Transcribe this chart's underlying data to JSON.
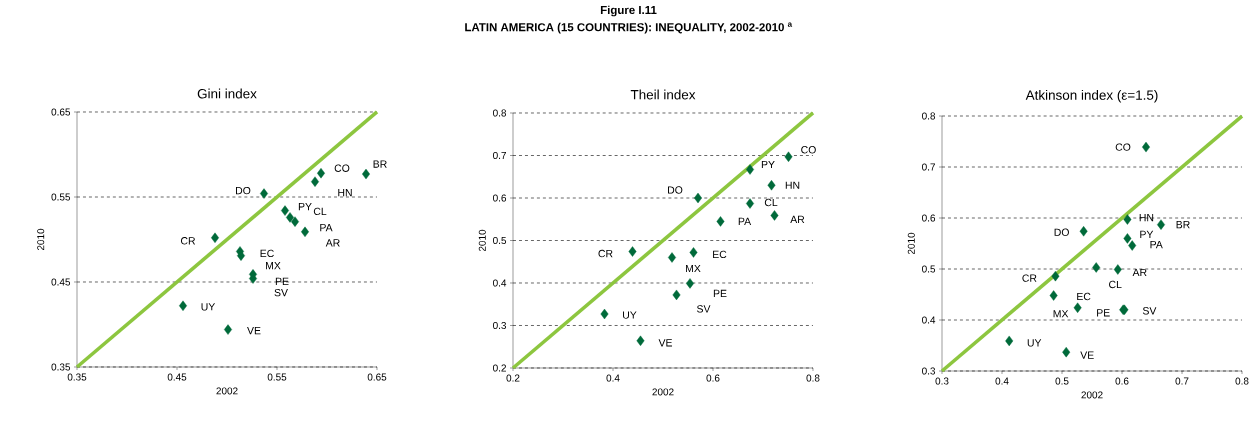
{
  "chart_data": [
    {
      "type": "scatter",
      "title": "Gini index",
      "xlabel": "2002",
      "ylabel": "2010",
      "xlim": [
        0.35,
        0.65
      ],
      "ylim": [
        0.35,
        0.65
      ],
      "xticks": [
        0.35,
        0.45,
        0.55,
        0.65
      ],
      "yticks": [
        0.35,
        0.45,
        0.55,
        0.65
      ],
      "grid": "y",
      "series": [
        {
          "marker": "diamond",
          "color": "#006a3a",
          "x": [
            0.639,
            0.594,
            0.588,
            0.537,
            0.558,
            0.563,
            0.568,
            0.578,
            0.488,
            0.513,
            0.514,
            0.526,
            0.526,
            0.456,
            0.501
          ],
          "values": [
            0.577,
            0.578,
            0.568,
            0.554,
            0.534,
            0.526,
            0.521,
            0.509,
            0.502,
            0.486,
            0.481,
            0.459,
            0.454,
            0.422,
            0.394
          ]
        },
        {
          "type": "line",
          "marker": "none",
          "color": "#8dc63f",
          "x": [
            0.35,
            0.65
          ],
          "values": [
            0.35,
            0.65
          ]
        }
      ],
      "annotations": [
        "Figure I.11",
        "LATIN AMERICA (15 COUNTRIES): INEQUALITY, 2002-2010 $^{a}$",
        {
          "text": "BR",
          "x": 0.639,
          "y": 0.577
        },
        {
          "text": "CO",
          "x": 0.594,
          "y": 0.578
        },
        {
          "text": "HN",
          "x": 0.588,
          "y": 0.568
        },
        {
          "text": "DO",
          "x": 0.537,
          "y": 0.554
        },
        {
          "text": "PY",
          "x": 0.558,
          "y": 0.534
        },
        {
          "text": "CL",
          "x": 0.563,
          "y": 0.526
        },
        {
          "text": "PA",
          "x": 0.568,
          "y": 0.521
        },
        {
          "text": "AR",
          "x": 0.578,
          "y": 0.509
        },
        {
          "text": "CR",
          "x": 0.488,
          "y": 0.502
        },
        {
          "text": "EC",
          "x": 0.513,
          "y": 0.486
        },
        {
          "text": "MX",
          "x": 0.514,
          "y": 0.481
        },
        {
          "text": "PE",
          "x": 0.526,
          "y": 0.459
        },
        {
          "text": "SV",
          "x": 0.526,
          "y": 0.454
        },
        {
          "text": "UY",
          "x": 0.456,
          "y": 0.422
        },
        {
          "text": "VE",
          "x": 0.501,
          "y": 0.394
        }
      ]
    },
    {
      "type": "scatter",
      "title": "Theil index",
      "xlabel": "2002",
      "ylabel": "2010",
      "xlim": [
        0.2,
        0.8
      ],
      "ylim": [
        0.2,
        0.8
      ],
      "xticks": [
        0.2,
        0.4,
        0.6,
        0.8
      ],
      "yticks": [
        0.2,
        0.3,
        0.4,
        0.5,
        0.6,
        0.7,
        0.8
      ],
      "grid": "y",
      "series": [
        {
          "marker": "diamond",
          "color": "#006a3a",
          "x": [
            0.751,
            0.674,
            0.717,
            0.57,
            0.674,
            0.723,
            0.615,
            0.439,
            0.561,
            0.518,
            0.554,
            0.527,
            0.383,
            0.455
          ],
          "values": [
            0.697,
            0.667,
            0.63,
            0.6,
            0.587,
            0.559,
            0.545,
            0.474,
            0.472,
            0.46,
            0.399,
            0.372,
            0.327,
            0.264
          ]
        },
        {
          "type": "line",
          "marker": "none",
          "color": "#8dc63f",
          "x": [
            0.2,
            0.8
          ],
          "values": [
            0.2,
            0.8
          ]
        }
      ],
      "annotations": [
        {
          "text": "CO",
          "x": 0.751,
          "y": 0.697
        },
        {
          "text": "PY",
          "x": 0.674,
          "y": 0.667
        },
        {
          "text": "HN",
          "x": 0.717,
          "y": 0.63
        },
        {
          "text": "DO",
          "x": 0.57,
          "y": 0.6
        },
        {
          "text": "CL",
          "x": 0.674,
          "y": 0.587
        },
        {
          "text": "AR",
          "x": 0.723,
          "y": 0.559
        },
        {
          "text": "PA",
          "x": 0.615,
          "y": 0.545
        },
        {
          "text": "CR",
          "x": 0.439,
          "y": 0.474
        },
        {
          "text": "EC",
          "x": 0.561,
          "y": 0.472
        },
        {
          "text": "MX",
          "x": 0.518,
          "y": 0.46
        },
        {
          "text": "PE",
          "x": 0.554,
          "y": 0.399
        },
        {
          "text": "SV",
          "x": 0.527,
          "y": 0.372
        },
        {
          "text": "UY",
          "x": 0.383,
          "y": 0.327
        },
        {
          "text": "VE",
          "x": 0.455,
          "y": 0.264
        }
      ]
    },
    {
      "type": "scatter",
      "title": "Atkinson index (ε=1.5)",
      "xlabel": "2002",
      "ylabel": "2010",
      "xlim": [
        0.3,
        0.8
      ],
      "ylim": [
        0.3,
        0.8
      ],
      "xticks": [
        0.3,
        0.4,
        0.5,
        0.6,
        0.7,
        0.8
      ],
      "yticks": [
        0.3,
        0.4,
        0.5,
        0.6,
        0.7,
        0.8
      ],
      "grid": "y",
      "series": [
        {
          "marker": "diamond",
          "color": "#006a3a",
          "x": [
            0.64,
            0.609,
            0.665,
            0.536,
            0.609,
            0.617,
            0.593,
            0.557,
            0.489,
            0.486,
            0.526,
            0.602,
            0.604,
            0.412,
            0.507
          ],
          "values": [
            0.739,
            0.597,
            0.587,
            0.574,
            0.56,
            0.546,
            0.499,
            0.503,
            0.486,
            0.448,
            0.424,
            0.42,
            0.42,
            0.359,
            0.337
          ]
        },
        {
          "type": "line",
          "marker": "none",
          "color": "#8dc63f",
          "x": [
            0.3,
            0.8
          ],
          "values": [
            0.3,
            0.8
          ]
        }
      ],
      "annotations": [
        {
          "text": "CO",
          "x": 0.64,
          "y": 0.739
        },
        {
          "text": "HN",
          "x": 0.609,
          "y": 0.597
        },
        {
          "text": "BR",
          "x": 0.665,
          "y": 0.587
        },
        {
          "text": "DO",
          "x": 0.536,
          "y": 0.574
        },
        {
          "text": "PY",
          "x": 0.609,
          "y": 0.56
        },
        {
          "text": "PA",
          "x": 0.617,
          "y": 0.546
        },
        {
          "text": "AR",
          "x": 0.593,
          "y": 0.499
        },
        {
          "text": "CL",
          "x": 0.557,
          "y": 0.503
        },
        {
          "text": "CR",
          "x": 0.489,
          "y": 0.486
        },
        {
          "text": "EC",
          "x": 0.486,
          "y": 0.448
        },
        {
          "text": "MX",
          "x": 0.526,
          "y": 0.424
        },
        {
          "text": "PE",
          "x": 0.602,
          "y": 0.42
        },
        {
          "text": "SV",
          "x": 0.604,
          "y": 0.42
        },
        {
          "text": "UY",
          "x": 0.412,
          "y": 0.359
        },
        {
          "text": "VE",
          "x": 0.507,
          "y": 0.337
        }
      ]
    }
  ]
}
